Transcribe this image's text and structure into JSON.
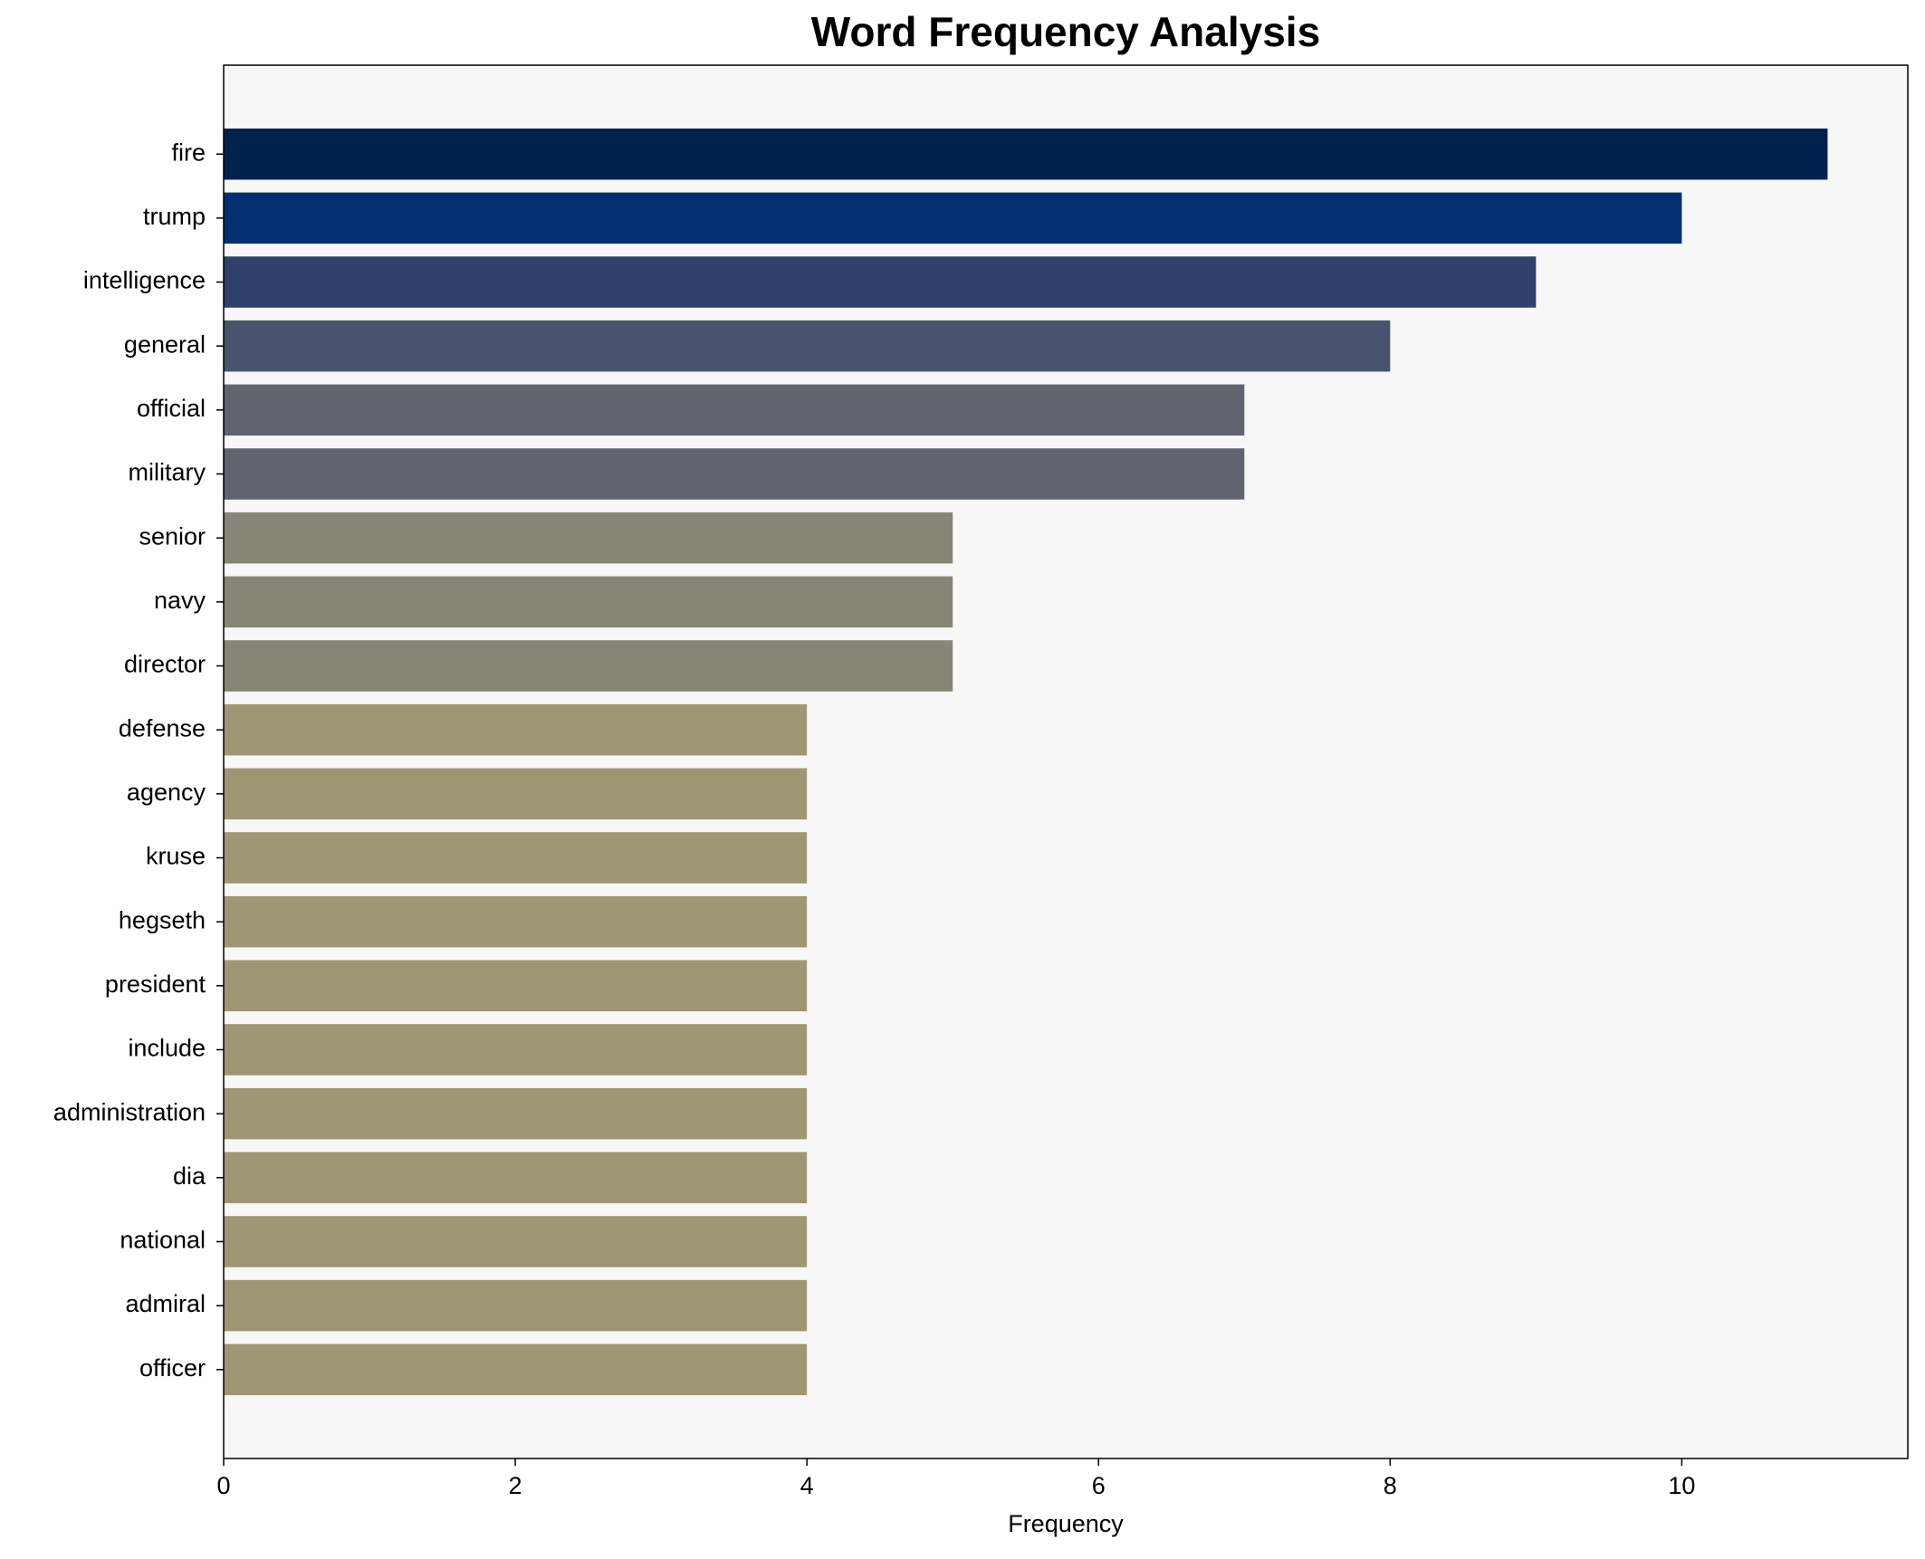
{
  "chart_data": {
    "type": "barh",
    "title": "Word Frequency Analysis",
    "x_label": "Frequency",
    "categories": [
      "fire",
      "trump",
      "intelligence",
      "general",
      "official",
      "military",
      "senior",
      "navy",
      "director",
      "defense",
      "agency",
      "kruse",
      "hegseth",
      "president",
      "include",
      "administration",
      "dia",
      "national",
      "admiral",
      "officer"
    ],
    "values": [
      11,
      10,
      9,
      8,
      7,
      7,
      5,
      5,
      5,
      4,
      4,
      4,
      4,
      4,
      4,
      4,
      4,
      4,
      4,
      4
    ],
    "colors": [
      "#00224e",
      "#023070",
      "#2f416b",
      "#4a536d",
      "#5f646f",
      "#5f646f",
      "#878576",
      "#878576",
      "#878576",
      "#9e9675",
      "#9e9675",
      "#9e9675",
      "#9e9675",
      "#9e9675",
      "#9e9675",
      "#9e9675",
      "#9e9675",
      "#9e9675",
      "#9e9675",
      "#9e9675"
    ],
    "xlim": [
      0,
      11.55
    ],
    "xticks": [
      0,
      2,
      4,
      6,
      8,
      10
    ]
  }
}
